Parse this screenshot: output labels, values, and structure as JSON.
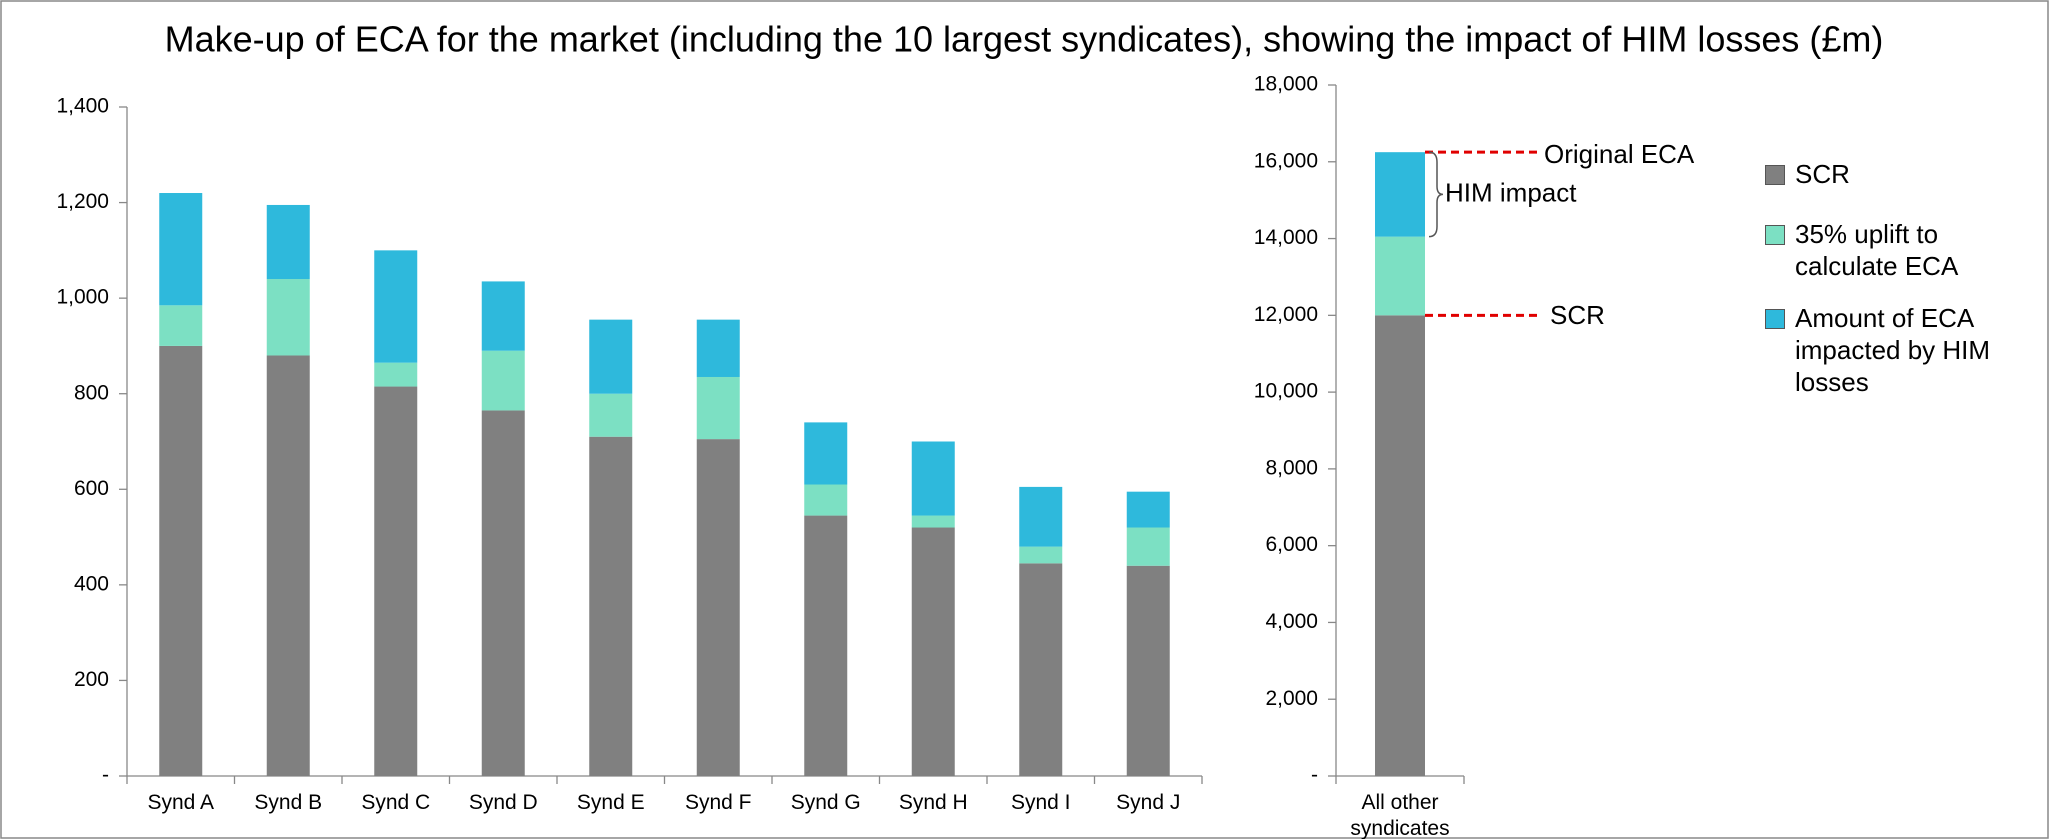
{
  "title": "Make-up of ECA for the market (including the 10 largest syndicates), showing the impact of HIM losses (£m)",
  "chart_data": [
    {
      "type": "bar",
      "stacked": true,
      "categories": [
        "Synd A",
        "Synd B",
        "Synd C",
        "Synd D",
        "Synd E",
        "Synd F",
        "Synd G",
        "Synd H",
        "Synd I",
        "Synd J"
      ],
      "series": [
        {
          "name": "SCR",
          "color": "#808080",
          "values": [
            900,
            880,
            815,
            765,
            710,
            705,
            545,
            520,
            445,
            440
          ]
        },
        {
          "name": "35% uplift to calculate ECA",
          "color": "#7ce0c3",
          "values": [
            85,
            160,
            50,
            125,
            90,
            130,
            65,
            25,
            35,
            80
          ]
        },
        {
          "name": "Amount of ECA impacted by HIM losses",
          "color": "#2eb9dc",
          "values": [
            235,
            155,
            235,
            145,
            155,
            120,
            130,
            155,
            125,
            75
          ]
        }
      ],
      "ylim": [
        0,
        1400
      ],
      "yticks": [
        {
          "value": 0,
          "label": "-"
        },
        200,
        400,
        600,
        800,
        {
          "value": 1000,
          "label": "1,000"
        },
        {
          "value": 1200,
          "label": "1,200"
        },
        {
          "value": 1400,
          "label": "1,400"
        }
      ]
    },
    {
      "type": "bar",
      "stacked": true,
      "categories": [
        "All other syndicates"
      ],
      "series": [
        {
          "name": "SCR",
          "color": "#808080",
          "values": [
            12000
          ]
        },
        {
          "name": "35% uplift to calculate ECA",
          "color": "#7ce0c3",
          "values": [
            2050
          ]
        },
        {
          "name": "Amount of ECA impacted by HIM losses",
          "color": "#2eb9dc",
          "values": [
            2200
          ]
        }
      ],
      "ylim": [
        0,
        18000
      ],
      "yticks": [
        {
          "value": 0,
          "label": "-"
        },
        {
          "value": 2000,
          "label": "2,000"
        },
        {
          "value": 4000,
          "label": "4,000"
        },
        {
          "value": 6000,
          "label": "6,000"
        },
        {
          "value": 8000,
          "label": "8,000"
        },
        {
          "value": 10000,
          "label": "10,000"
        },
        {
          "value": 12000,
          "label": "12,000"
        },
        {
          "value": 14000,
          "label": "14,000"
        },
        {
          "value": 16000,
          "label": "16,000"
        },
        {
          "value": 18000,
          "label": "18,000"
        }
      ],
      "annotations": [
        "Original ECA",
        "HIM impact",
        "SCR"
      ]
    }
  ]
}
